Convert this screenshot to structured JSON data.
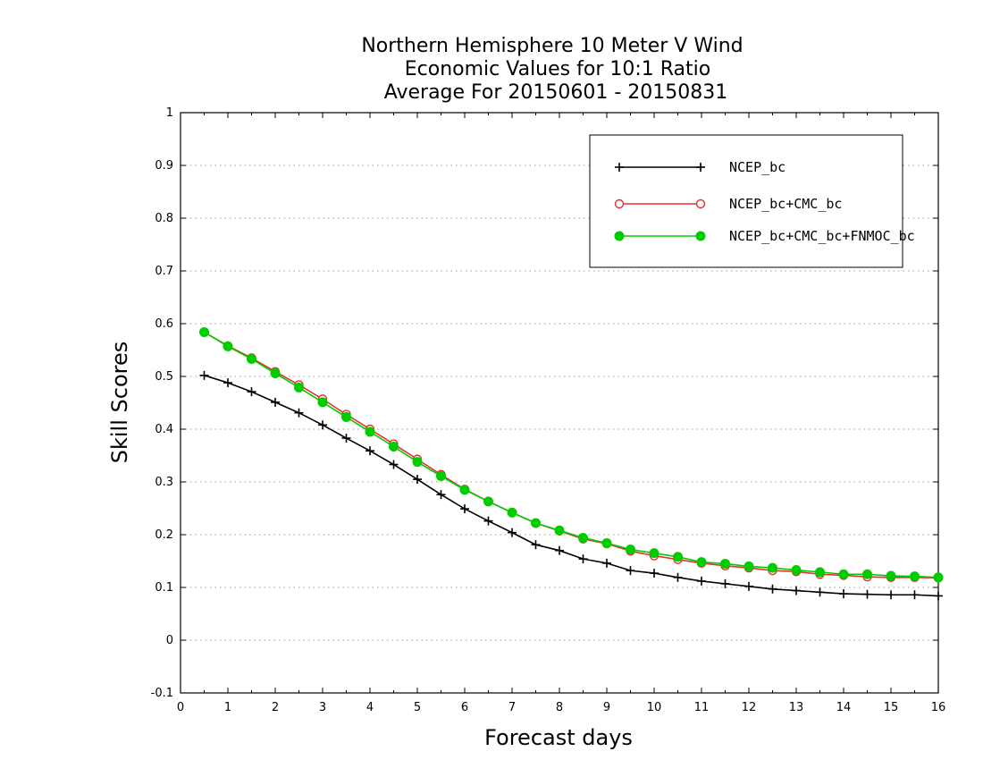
{
  "chart_data": {
    "type": "line",
    "title": [
      "Northern Hemisphere 10 Meter V Wind",
      "Economic Values for 10:1 Ratio",
      "Average For 20150601 - 20150831"
    ],
    "xlabel": "Forecast days",
    "ylabel": "Skill Scores",
    "xlim": [
      0,
      16
    ],
    "ylim": [
      -0.1,
      1
    ],
    "xticks": [
      0,
      1,
      2,
      3,
      4,
      5,
      6,
      7,
      8,
      9,
      10,
      11,
      12,
      13,
      14,
      15,
      16
    ],
    "yticks": [
      -0.1,
      0,
      0.1,
      0.2,
      0.3,
      0.4,
      0.5,
      0.6,
      0.7,
      0.8,
      0.9,
      1
    ],
    "ytick_labels": [
      "-0.1",
      "0",
      "0.1",
      "0.2",
      "0.3",
      "0.4",
      "0.5",
      "0.6",
      "0.7",
      "0.8",
      "0.9",
      "1"
    ],
    "grid": "horizontal dotted",
    "legend_position": "top-right",
    "x": [
      0.5,
      1,
      1.5,
      2,
      2.5,
      3,
      3.5,
      4,
      4.5,
      5,
      5.5,
      6,
      6.5,
      7,
      7.5,
      8,
      8.5,
      9,
      9.5,
      10,
      10.5,
      11,
      11.5,
      12,
      12.5,
      13,
      13.5,
      14,
      14.5,
      15,
      15.5,
      16
    ],
    "series": [
      {
        "name": "NCEP_bc",
        "color": "#000000",
        "marker": "plus",
        "values": [
          0.502,
          0.488,
          0.471,
          0.451,
          0.431,
          0.408,
          0.383,
          0.359,
          0.333,
          0.305,
          0.276,
          0.249,
          0.226,
          0.204,
          0.181,
          0.17,
          0.154,
          0.146,
          0.132,
          0.127,
          0.119,
          0.112,
          0.107,
          0.102,
          0.097,
          0.094,
          0.091,
          0.088,
          0.087,
          0.086,
          0.086,
          0.084
        ]
      },
      {
        "name": "NCEP_bc+CMC_bc",
        "color": "#e03030",
        "marker": "open-circle",
        "values": [
          0.584,
          0.558,
          0.535,
          0.509,
          0.484,
          0.457,
          0.428,
          0.4,
          0.372,
          0.343,
          0.314,
          0.286,
          0.263,
          0.242,
          0.222,
          0.207,
          0.192,
          0.183,
          0.169,
          0.16,
          0.153,
          0.146,
          0.141,
          0.137,
          0.132,
          0.13,
          0.125,
          0.123,
          0.12,
          0.119,
          0.119,
          0.118
        ]
      },
      {
        "name": "NCEP_bc+CMC_bc+FNMOC_bc",
        "color": "#00cc00",
        "marker": "filled-circle",
        "values": [
          0.584,
          0.557,
          0.533,
          0.506,
          0.479,
          0.451,
          0.423,
          0.395,
          0.367,
          0.338,
          0.311,
          0.285,
          0.263,
          0.242,
          0.222,
          0.208,
          0.194,
          0.184,
          0.172,
          0.165,
          0.158,
          0.148,
          0.145,
          0.14,
          0.137,
          0.133,
          0.129,
          0.125,
          0.125,
          0.122,
          0.121,
          0.119
        ]
      }
    ]
  }
}
